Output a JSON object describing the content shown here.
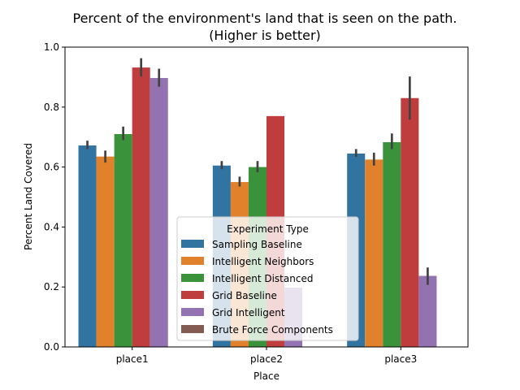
{
  "chart_data": {
    "type": "bar",
    "title_line1": "Percent of the environment's land that is seen on the path.",
    "title_line2": "(Higher is better)",
    "xlabel": "Place",
    "ylabel": "Percent Land Covered",
    "categories": [
      "place1",
      "place2",
      "place3"
    ],
    "ylim": [
      0,
      1.0
    ],
    "yticks": [
      "0.0",
      "0.2",
      "0.4",
      "0.6",
      "0.8",
      "1.0"
    ],
    "grid": false,
    "legend": {
      "title": "Experiment Type",
      "placement": "lower-center"
    },
    "series": [
      {
        "name": "Sampling Baseline",
        "color": "#3274a1",
        "values": [
          0.672,
          0.605,
          0.645
        ],
        "error_low": [
          0.66,
          0.593,
          0.634
        ],
        "error_high": [
          0.688,
          0.62,
          0.66
        ]
      },
      {
        "name": "Intelligent Neighbors",
        "color": "#e1812c",
        "values": [
          0.635,
          0.55,
          0.625
        ],
        "error_low": [
          0.615,
          0.535,
          0.605
        ],
        "error_high": [
          0.655,
          0.568,
          0.648
        ]
      },
      {
        "name": "Intelligent Distanced",
        "color": "#3a923a",
        "values": [
          0.71,
          0.6,
          0.683
        ],
        "error_low": [
          0.69,
          0.583,
          0.66
        ],
        "error_high": [
          0.735,
          0.62,
          0.712
        ]
      },
      {
        "name": "Grid Baseline",
        "color": "#c03d3e",
        "values": [
          0.932,
          0.77,
          0.83
        ],
        "error_low": [
          0.902,
          0.77,
          0.758
        ],
        "error_high": [
          0.963,
          0.77,
          0.902
        ]
      },
      {
        "name": "Grid Intelligent",
        "color": "#9372b2",
        "values": [
          0.897,
          0.198,
          0.237
        ],
        "error_low": [
          0.868,
          0.198,
          0.207
        ],
        "error_high": [
          0.928,
          0.198,
          0.265
        ]
      },
      {
        "name": "Brute Force Components",
        "color": "#845b53",
        "values": [
          null,
          null,
          null
        ],
        "error_low": [
          null,
          null,
          null
        ],
        "error_high": [
          null,
          null,
          null
        ]
      }
    ]
  }
}
